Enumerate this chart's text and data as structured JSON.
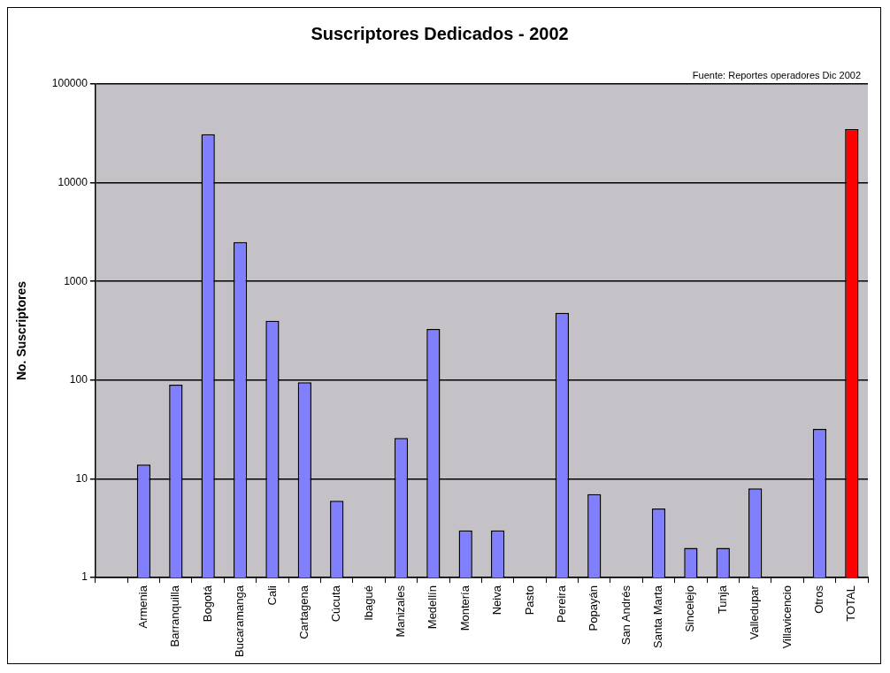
{
  "chart_data": {
    "type": "bar",
    "title": "Suscriptores Dedicados - 2002",
    "ylabel": "No. Suscriptores",
    "annotations": [
      "Fuente: Reportes operadores Dic 2002"
    ],
    "categories": [
      null,
      "Armenia",
      "Barranquilla",
      "Bogotá",
      "Bucaramanga",
      "Cali",
      "Cartagena",
      "Cúcuta",
      "Ibagué",
      "Manizales",
      "Medellín",
      "Montería",
      "Neiva",
      "Pasto",
      "Pereira",
      "Popayán",
      "San Andrés",
      "Santa Marta",
      "Sincelejo",
      "Tunja",
      "Valledupar",
      "Villavicencio",
      "Otros",
      "TOTAL"
    ],
    "values": [
      null,
      14,
      90,
      31000,
      2500,
      400,
      95,
      6,
      null,
      26,
      330,
      3,
      3,
      null,
      480,
      7,
      null,
      5,
      2,
      2,
      8,
      null,
      32,
      35000
    ],
    "colors": [
      "#8080ff",
      "#8080ff",
      "#8080ff",
      "#8080ff",
      "#8080ff",
      "#8080ff",
      "#8080ff",
      "#8080ff",
      "#8080ff",
      "#8080ff",
      "#8080ff",
      "#8080ff",
      "#8080ff",
      "#8080ff",
      "#8080ff",
      "#8080ff",
      "#8080ff",
      "#8080ff",
      "#8080ff",
      "#8080ff",
      "#8080ff",
      "#8080ff",
      "#8080ff",
      "#ff0000"
    ],
    "log": true,
    "ylim": [
      1,
      100000
    ],
    "yticks": [
      1,
      10,
      100,
      1000,
      10000,
      100000
    ],
    "grid": "y",
    "legend": false
  }
}
